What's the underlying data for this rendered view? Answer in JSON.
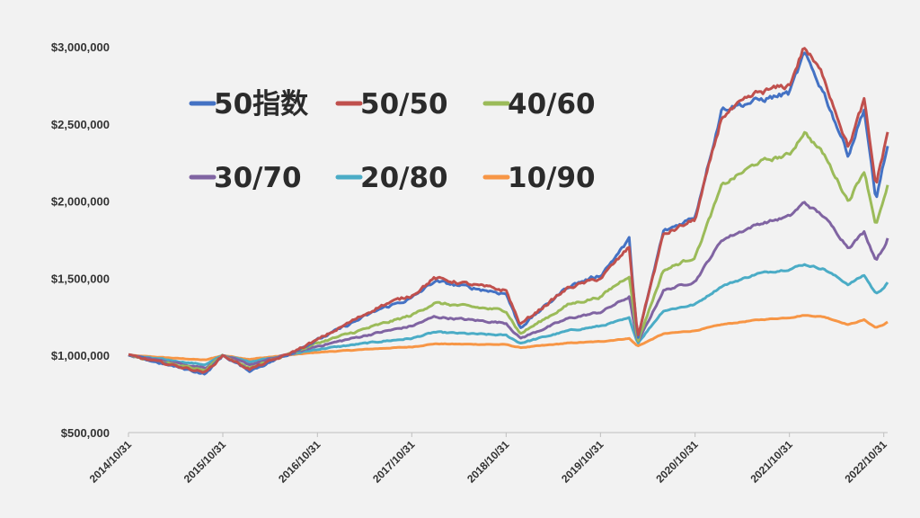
{
  "chart_data": {
    "type": "line",
    "title": "",
    "xlabel": "",
    "ylabel": "",
    "ylim": [
      500000,
      3000000
    ],
    "yticks": [
      500000,
      1000000,
      1500000,
      2000000,
      2500000,
      3000000
    ],
    "ytick_labels": [
      "$500,000",
      "$1,000,000",
      "$1,500,000",
      "$2,000,000",
      "$2,500,000",
      "$3,000,000"
    ],
    "xtick_labels": [
      "2014/10/31",
      "2015/10/31",
      "2016/10/31",
      "2017/10/31",
      "2018/10/31",
      "2019/10/31",
      "2020/10/31",
      "2021/10/31",
      "2022/10/31"
    ],
    "x": [
      "2014-10-31",
      "2015-08-25",
      "2015-10-31",
      "2016-02-11",
      "2016-06-30",
      "2016-10-31",
      "2017-06-30",
      "2017-10-31",
      "2018-01-26",
      "2018-10-31",
      "2018-12-24",
      "2019-06-30",
      "2019-10-31",
      "2020-02-19",
      "2020-03-23",
      "2020-06-30",
      "2020-10-31",
      "2021-02-12",
      "2021-06-30",
      "2021-10-31",
      "2021-12-27",
      "2022-03-14",
      "2022-06-16",
      "2022-08-16",
      "2022-09-30",
      "2022-10-31",
      "2022-11-15"
    ],
    "grid": false,
    "legend_position": "top-left",
    "series": [
      {
        "name": "50指数",
        "color": "#4472c4",
        "values": [
          1000000,
          880000,
          1000000,
          900000,
          1000000,
          1100000,
          1300000,
          1370000,
          1480000,
          1400000,
          1180000,
          1450000,
          1520000,
          1750000,
          1100000,
          1800000,
          1900000,
          2600000,
          2650000,
          2700000,
          2950000,
          2700000,
          2300000,
          2600000,
          2000000,
          2250000,
          2350000
        ]
      },
      {
        "name": "50/50",
        "color": "#c0504d",
        "values": [
          1000000,
          890000,
          1000000,
          910000,
          1000000,
          1100000,
          1320000,
          1390000,
          1500000,
          1420000,
          1200000,
          1440000,
          1500000,
          1700000,
          1120000,
          1780000,
          1880000,
          2550000,
          2700000,
          2750000,
          3000000,
          2800000,
          2350000,
          2650000,
          2100000,
          2330000,
          2450000
        ]
      },
      {
        "name": "40/60",
        "color": "#9bbb59",
        "values": [
          1000000,
          900000,
          1000000,
          920000,
          1000000,
          1080000,
          1200000,
          1260000,
          1340000,
          1290000,
          1140000,
          1330000,
          1380000,
          1520000,
          1090000,
          1550000,
          1640000,
          2100000,
          2250000,
          2300000,
          2450000,
          2300000,
          2000000,
          2200000,
          1850000,
          2000000,
          2100000
        ]
      },
      {
        "name": "30/70",
        "color": "#8064a2",
        "values": [
          1000000,
          920000,
          1000000,
          940000,
          1000000,
          1060000,
          1150000,
          1190000,
          1250000,
          1210000,
          1110000,
          1240000,
          1280000,
          1380000,
          1080000,
          1420000,
          1480000,
          1750000,
          1850000,
          1900000,
          1990000,
          1900000,
          1700000,
          1800000,
          1620000,
          1700000,
          1760000
        ]
      },
      {
        "name": "20/80",
        "color": "#4bacc6",
        "values": [
          1000000,
          940000,
          1000000,
          960000,
          1000000,
          1040000,
          1090000,
          1110000,
          1150000,
          1130000,
          1080000,
          1160000,
          1190000,
          1240000,
          1080000,
          1290000,
          1330000,
          1450000,
          1530000,
          1560000,
          1590000,
          1560000,
          1460000,
          1520000,
          1400000,
          1440000,
          1470000
        ]
      },
      {
        "name": "10/90",
        "color": "#f79646",
        "values": [
          1000000,
          970000,
          1000000,
          975000,
          1000000,
          1020000,
          1045000,
          1055000,
          1075000,
          1070000,
          1050000,
          1080000,
          1090000,
          1110000,
          1060000,
          1140000,
          1160000,
          1200000,
          1230000,
          1245000,
          1260000,
          1250000,
          1200000,
          1230000,
          1180000,
          1200000,
          1215000
        ]
      }
    ]
  }
}
